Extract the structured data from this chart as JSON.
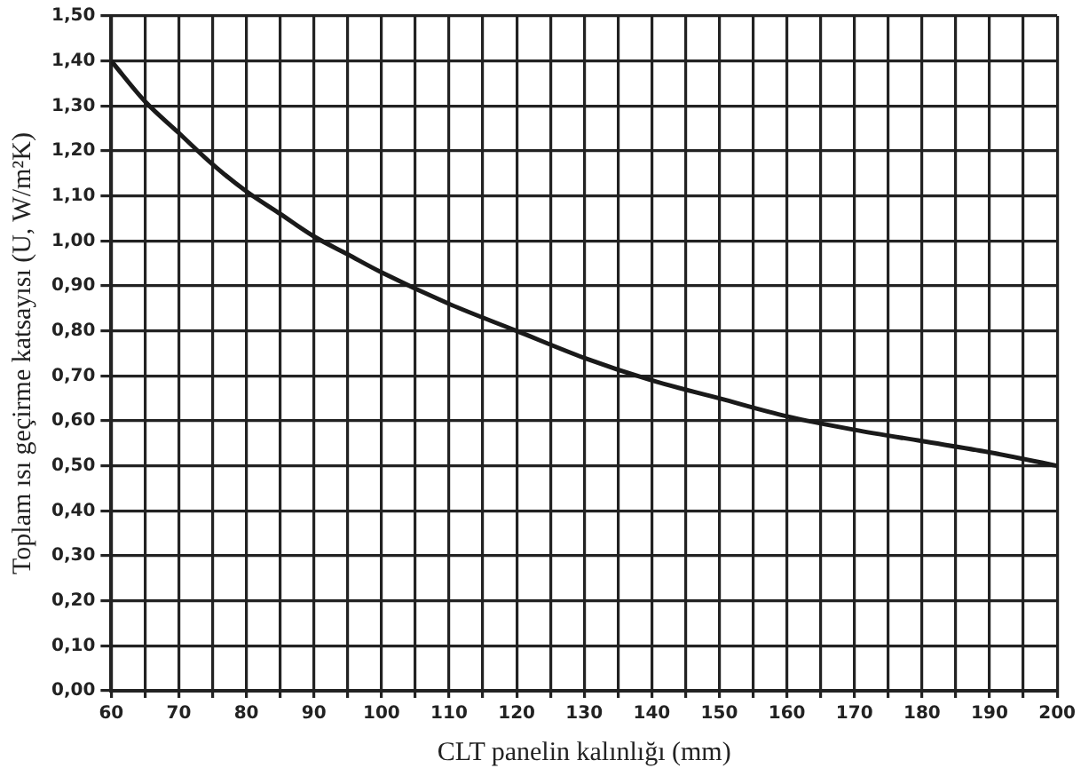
{
  "chart_data": {
    "type": "line",
    "xlabel": "CLT panelin kalınlığı (mm)",
    "ylabel": "Toplam ısı geçirme katsayısı (U, W/m²K)",
    "series": [
      {
        "color": "#1a1a1a",
        "x": [
          60,
          65,
          70,
          75,
          80,
          85,
          90,
          95,
          100,
          110,
          120,
          130,
          140,
          150,
          160,
          170,
          180,
          190,
          200
        ],
        "values": [
          1.4,
          1.31,
          1.24,
          1.17,
          1.11,
          1.06,
          1.01,
          0.97,
          0.93,
          0.86,
          0.8,
          0.74,
          0.69,
          0.65,
          0.61,
          0.58,
          0.555,
          0.53,
          0.5
        ]
      }
    ],
    "xlim": [
      60,
      200
    ],
    "xticks": [
      60,
      {
        "value": 65,
        "label": null
      },
      70,
      {
        "value": 75,
        "label": null
      },
      80,
      {
        "value": 85,
        "label": null
      },
      90,
      {
        "value": 95,
        "label": null
      },
      100,
      {
        "value": 105,
        "label": null
      },
      110,
      {
        "value": 115,
        "label": null
      },
      120,
      {
        "value": 125,
        "label": null
      },
      130,
      {
        "value": 135,
        "label": null
      },
      140,
      {
        "value": 145,
        "label": null
      },
      150,
      {
        "value": 155,
        "label": null
      },
      160,
      {
        "value": 165,
        "label": null
      },
      170,
      {
        "value": 175,
        "label": null
      },
      180,
      {
        "value": 185,
        "label": null
      },
      190,
      {
        "value": 195,
        "label": null
      },
      200
    ],
    "ylim": [
      0,
      1.5
    ],
    "yticks": [
      {
        "value": 0,
        "label": "0,00"
      },
      {
        "value": 0.1,
        "label": "0,10"
      },
      {
        "value": 0.2,
        "label": "0,20"
      },
      {
        "value": 0.3,
        "label": "0,30"
      },
      {
        "value": 0.4,
        "label": "0,40"
      },
      {
        "value": 0.5,
        "label": "0,50"
      },
      {
        "value": 0.6,
        "label": "0,60"
      },
      {
        "value": 0.7,
        "label": "0,70"
      },
      {
        "value": 0.8,
        "label": "0,80"
      },
      {
        "value": 0.9,
        "label": "0,90"
      },
      {
        "value": 1.0,
        "label": "1,00"
      },
      {
        "value": 1.1,
        "label": "1,10"
      },
      {
        "value": 1.2,
        "label": "1,20"
      },
      {
        "value": 1.3,
        "label": "1,30"
      },
      {
        "value": 1.4,
        "label": "1,40"
      },
      {
        "value": 1.5,
        "label": "1,50"
      }
    ],
    "grid": true,
    "marker": "none",
    "line_style": "solid"
  }
}
